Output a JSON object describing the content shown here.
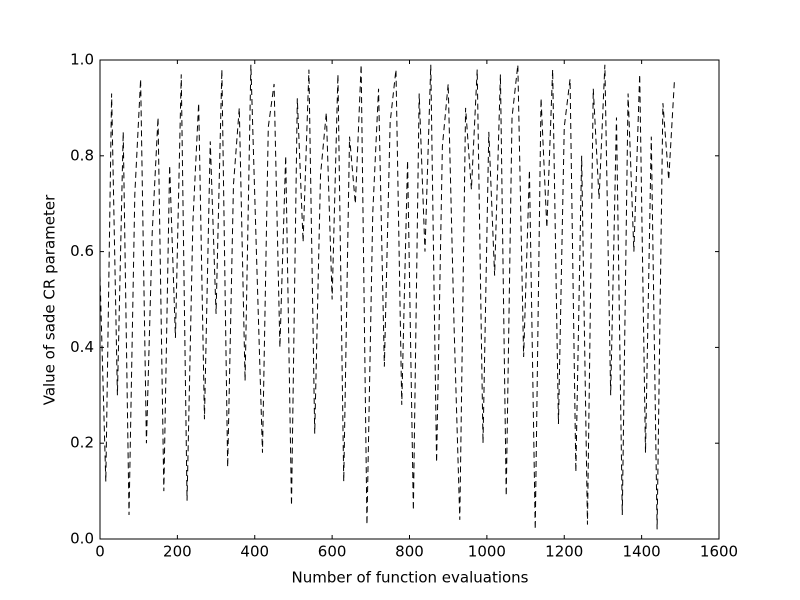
{
  "chart_data": {
    "type": "line",
    "xlabel": "Number of function evaluations",
    "ylabel": "Value of sade CR parameter",
    "x": [
      0,
      15,
      30,
      45,
      60,
      75,
      90,
      105,
      120,
      135,
      150,
      165,
      180,
      195,
      210,
      225,
      240,
      255,
      270,
      285,
      300,
      315,
      330,
      345,
      360,
      375,
      390,
      405,
      420,
      435,
      450,
      465,
      480,
      495,
      510,
      525,
      540,
      555,
      570,
      585,
      600,
      615,
      630,
      645,
      660,
      675,
      690,
      705,
      720,
      735,
      750,
      765,
      780,
      795,
      810,
      825,
      840,
      855,
      870,
      885,
      900,
      915,
      930,
      945,
      960,
      975,
      990,
      1005,
      1020,
      1035,
      1050,
      1065,
      1080,
      1095,
      1110,
      1125,
      1140,
      1155,
      1170,
      1185,
      1200,
      1215,
      1230,
      1245,
      1260,
      1275,
      1290,
      1305,
      1320,
      1335,
      1350,
      1365,
      1380,
      1395,
      1410,
      1425,
      1440,
      1455,
      1470,
      1485
    ],
    "series": [
      {
        "color": "#000000",
        "values": [
          0.55,
          0.12,
          0.93,
          0.3,
          0.85,
          0.05,
          0.72,
          0.96,
          0.2,
          0.64,
          0.88,
          0.1,
          0.78,
          0.42,
          0.97,
          0.08,
          0.66,
          0.91,
          0.25,
          0.83,
          0.47,
          0.98,
          0.15,
          0.74,
          0.9,
          0.33,
          0.99,
          0.58,
          0.18,
          0.86,
          0.95,
          0.4,
          0.8,
          0.07,
          0.92,
          0.62,
          0.98,
          0.22,
          0.76,
          0.89,
          0.5,
          0.97,
          0.12,
          0.84,
          0.7,
          0.99,
          0.03,
          0.68,
          0.94,
          0.36,
          0.87,
          0.98,
          0.28,
          0.79,
          0.06,
          0.93,
          0.6,
          0.99,
          0.16,
          0.82,
          0.95,
          0.45,
          0.04,
          0.9,
          0.73,
          0.98,
          0.2,
          0.85,
          0.55,
          0.97,
          0.09,
          0.88,
          0.99,
          0.38,
          0.77,
          0.02,
          0.92,
          0.65,
          0.98,
          0.24,
          0.86,
          0.96,
          0.14,
          0.8,
          0.03,
          0.94,
          0.71,
          0.99,
          0.3,
          0.88,
          0.05,
          0.93,
          0.6,
          0.97,
          0.18,
          0.84,
          0.02,
          0.91,
          0.75,
          0.96
        ]
      }
    ],
    "xlim": [
      0,
      1600
    ],
    "xticks": [
      0,
      200,
      400,
      600,
      800,
      1000,
      1200,
      1400,
      1600
    ],
    "ylim": [
      0,
      1
    ],
    "yticks": [
      {
        "value": 0,
        "label": "0.0"
      },
      0.2,
      0.4,
      0.6,
      0.8,
      {
        "value": 1,
        "label": "1.0"
      }
    ],
    "dashed": true,
    "grid": false
  }
}
